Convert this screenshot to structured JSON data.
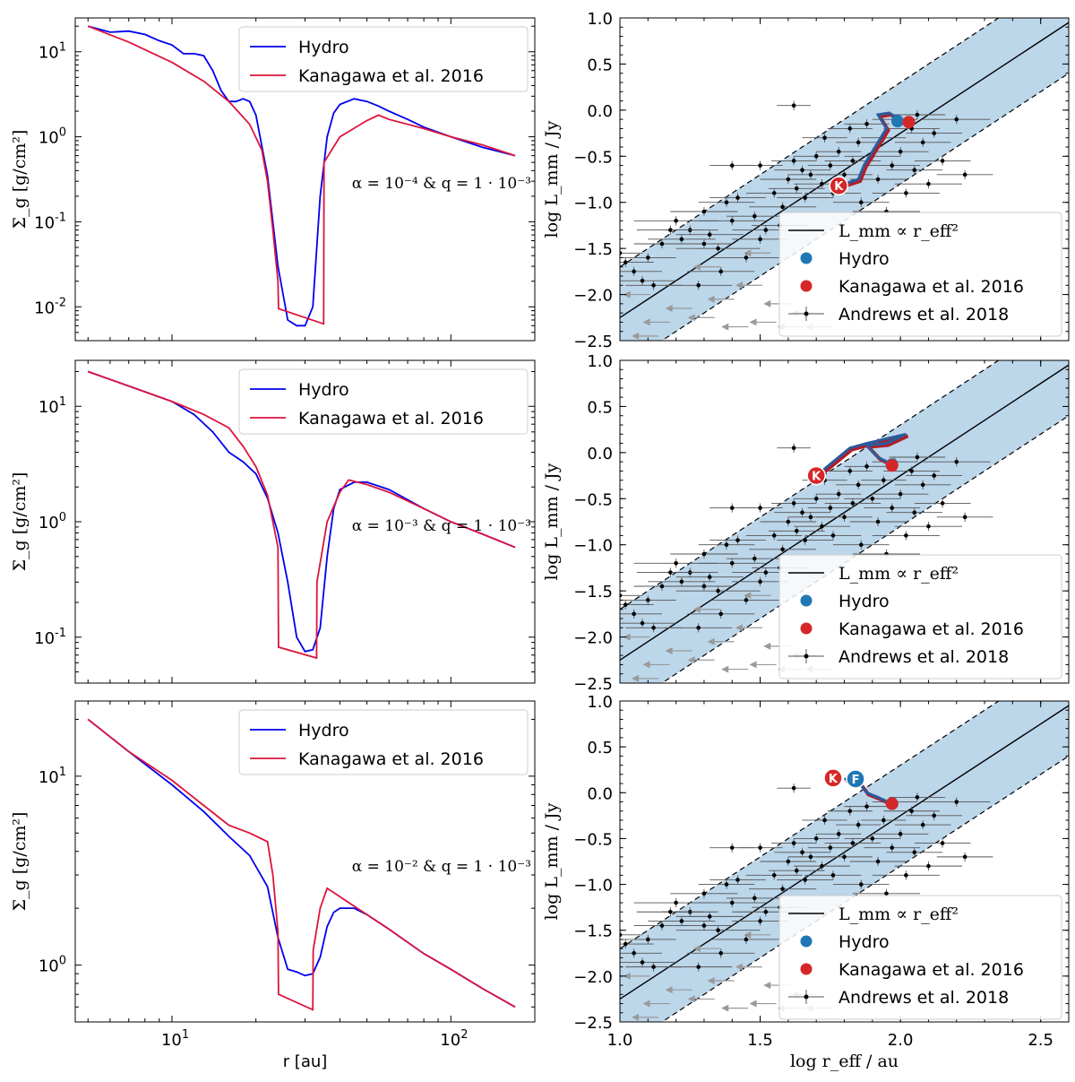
{
  "chart_data": [
    {
      "type": "line",
      "panel": "left-top",
      "scale": "log-log",
      "xlim": [
        4.5,
        200
      ],
      "ylim": [
        0.004,
        25
      ],
      "xlabel": "",
      "ylabel": "Σ_g [g/cm²]",
      "yticks": [
        {
          "v": 10,
          "label": "10",
          "exp": "1"
        },
        {
          "v": 1,
          "label": "10",
          "exp": "0"
        },
        {
          "v": 0.1,
          "label": "10",
          "exp": "-1"
        },
        {
          "v": 0.01,
          "label": "10",
          "exp": "-2"
        }
      ],
      "xticks": [],
      "annotation": "α = 10⁻⁴ & q = 1 · 10⁻³",
      "legend": {
        "position": "top-right",
        "entries": [
          {
            "label": "Hydro",
            "color": "#0000ee"
          },
          {
            "label": "Kanagawa et al. 2016",
            "color": "#dc143c"
          }
        ]
      },
      "series": [
        {
          "name": "Hydro",
          "color": "#0000ee",
          "x": [
            5,
            6,
            7,
            8,
            9,
            10,
            11,
            12,
            13,
            14,
            15,
            16,
            17,
            18,
            19,
            20,
            22,
            24,
            26,
            28,
            30,
            32,
            34,
            36,
            38,
            40,
            45,
            50,
            55,
            60,
            70,
            80,
            100,
            130,
            170
          ],
          "y": [
            20,
            17,
            17.5,
            16,
            13.5,
            12,
            9.5,
            9.5,
            9,
            6,
            3.5,
            2.6,
            2.6,
            2.8,
            2.6,
            1.8,
            0.35,
            0.03,
            0.007,
            0.006,
            0.006,
            0.01,
            0.2,
            1,
            1.9,
            2.4,
            2.8,
            2.6,
            2.3,
            2,
            1.6,
            1.3,
            1.0,
            0.75,
            0.6
          ]
        },
        {
          "name": "Kanagawa et al. 2016",
          "color": "#dc143c",
          "x": [
            5,
            7,
            10,
            13,
            16,
            19,
            21,
            22,
            23,
            24,
            24.1,
            35,
            35.1,
            40,
            50,
            55,
            60,
            80,
            100,
            130,
            170
          ],
          "y": [
            20,
            13,
            7.5,
            4.5,
            2.6,
            1.4,
            0.7,
            0.3,
            0.08,
            0.02,
            0.0095,
            0.0063,
            0.5,
            1.0,
            1.55,
            1.8,
            1.6,
            1.25,
            1.0,
            0.8,
            0.6
          ]
        }
      ]
    },
    {
      "type": "line",
      "panel": "left-middle",
      "scale": "log-log",
      "xlim": [
        4.5,
        200
      ],
      "ylim": [
        0.04,
        25
      ],
      "xlabel": "",
      "ylabel": "Σ_g [g/cm²]",
      "yticks": [
        {
          "v": 10,
          "label": "10",
          "exp": "1"
        },
        {
          "v": 1,
          "label": "10",
          "exp": "0"
        },
        {
          "v": 0.1,
          "label": "10",
          "exp": "-1"
        }
      ],
      "xticks": [],
      "annotation": "α = 10⁻³ & q = 1 · 10⁻³",
      "legend": {
        "position": "top-right",
        "entries": [
          {
            "label": "Hydro",
            "color": "#0000ee"
          },
          {
            "label": "Kanagawa et al. 2016",
            "color": "#dc143c"
          }
        ]
      },
      "series": [
        {
          "name": "Hydro",
          "color": "#0000ee",
          "x": [
            5,
            7,
            10,
            12,
            14,
            16,
            18,
            20,
            22,
            24,
            26,
            28,
            30,
            32,
            34,
            36,
            38,
            40,
            45,
            50,
            60,
            70,
            80,
            100,
            130,
            170
          ],
          "y": [
            20,
            15,
            11,
            8.5,
            6,
            4,
            3.3,
            2.6,
            1.6,
            0.8,
            0.3,
            0.1,
            0.075,
            0.078,
            0.12,
            0.5,
            1.3,
            1.9,
            2.2,
            2.2,
            1.9,
            1.55,
            1.3,
            1.0,
            0.78,
            0.6
          ]
        },
        {
          "name": "Kanagawa et al. 2016",
          "color": "#dc143c",
          "x": [
            5,
            7,
            10,
            13,
            16,
            18,
            20,
            22,
            24,
            24.1,
            33,
            33.1,
            36,
            40,
            43,
            50,
            60,
            80,
            100,
            130,
            170
          ],
          "y": [
            20,
            15,
            11,
            8.5,
            6.5,
            4.5,
            3,
            1.7,
            0.6,
            0.082,
            0.066,
            0.3,
            1.0,
            1.8,
            2.3,
            2.1,
            1.8,
            1.3,
            1.0,
            0.78,
            0.6
          ]
        }
      ]
    },
    {
      "type": "line",
      "panel": "left-bottom",
      "scale": "log-log",
      "xlim": [
        4.5,
        200
      ],
      "ylim": [
        0.5,
        25
      ],
      "xlabel": "r [au]",
      "ylabel": "Σ_g [g/cm²]",
      "yticks": [
        {
          "v": 10,
          "label": "10",
          "exp": "1"
        },
        {
          "v": 1,
          "label": "10",
          "exp": "0"
        }
      ],
      "xticks": [
        {
          "v": 10,
          "label": "10",
          "exp": "1"
        },
        {
          "v": 100,
          "label": "10",
          "exp": "2"
        }
      ],
      "annotation": "α = 10⁻² & q = 1 · 10⁻³",
      "legend": {
        "position": "top-right",
        "entries": [
          {
            "label": "Hydro",
            "color": "#0000ee"
          },
          {
            "label": "Kanagawa et al. 2016",
            "color": "#dc143c"
          }
        ]
      },
      "series": [
        {
          "name": "Hydro",
          "color": "#0000ee",
          "x": [
            5,
            7,
            10,
            13,
            16,
            19,
            22,
            24,
            26,
            28,
            30,
            32,
            34,
            36,
            38,
            40,
            45,
            50,
            60,
            80,
            100,
            130,
            170
          ],
          "y": [
            20,
            13.5,
            9,
            6.5,
            4.8,
            3.8,
            2.6,
            1.4,
            0.95,
            0.92,
            0.88,
            0.9,
            1.1,
            1.6,
            1.9,
            2.0,
            2.0,
            1.85,
            1.55,
            1.15,
            0.95,
            0.75,
            0.6
          ]
        },
        {
          "name": "Kanagawa et al. 2016",
          "color": "#dc143c",
          "x": [
            5,
            7,
            10,
            13,
            16,
            19,
            22,
            23,
            24,
            24.1,
            32,
            32.1,
            34,
            36,
            40,
            50,
            60,
            80,
            100,
            130,
            170
          ],
          "y": [
            20,
            13.5,
            9.5,
            7,
            5.5,
            5,
            4.5,
            3,
            1.5,
            0.7,
            0.58,
            1.2,
            2.0,
            2.55,
            2.3,
            1.85,
            1.55,
            1.15,
            0.95,
            0.75,
            0.6
          ]
        }
      ]
    },
    {
      "type": "scatter",
      "panel": "right-top",
      "xlim": [
        1.0,
        2.6
      ],
      "ylim": [
        -2.5,
        1.0
      ],
      "xlabel": "",
      "ylabel": "log L_mm / Jy",
      "yticks": [
        "1.0",
        "0.5",
        "0.0",
        "−0.5",
        "−1.0",
        "−1.5",
        "−2.0",
        "−2.5"
      ],
      "relation": {
        "label": "L_mm ∝ r_eff²",
        "slope": 2,
        "intercept": -4.25,
        "band_halfwidth": 0.55
      },
      "track": [
        [
          1.78,
          -0.82
        ],
        [
          1.85,
          -0.75
        ],
        [
          1.87,
          -0.6
        ],
        [
          1.9,
          -0.45
        ],
        [
          1.93,
          -0.3
        ],
        [
          1.95,
          -0.2
        ],
        [
          1.92,
          -0.05
        ],
        [
          1.96,
          -0.03
        ],
        [
          1.99,
          -0.1
        ],
        [
          2.01,
          -0.13
        ]
      ],
      "hydro_point": [
        1.99,
        -0.12
      ],
      "kanagawa_point": [
        2.03,
        -0.13
      ],
      "start_marker": {
        "label": "K",
        "x": 1.78,
        "y": -0.82
      },
      "legend": {
        "position": "lower-right",
        "entries": [
          {
            "label": "L_mm ∝ r_eff²",
            "kind": "line",
            "color": "#000000"
          },
          {
            "label": "Hydro",
            "kind": "dot",
            "color": "#1f77b4"
          },
          {
            "label": "Kanagawa et al. 2016",
            "kind": "dot",
            "color": "#d62728"
          },
          {
            "label": "Andrews et al. 2018",
            "kind": "errbar",
            "color": "#000000"
          }
        ]
      }
    },
    {
      "type": "scatter",
      "panel": "right-middle",
      "xlim": [
        1.0,
        2.6
      ],
      "ylim": [
        -2.5,
        1.0
      ],
      "xlabel": "",
      "ylabel": "log L_mm / Jy",
      "yticks": [
        "1.0",
        "0.5",
        "0.0",
        "−0.5",
        "−1.0",
        "−1.5",
        "−2.0",
        "−2.5"
      ],
      "relation": {
        "label": "L_mm ∝ r_eff²",
        "slope": 2,
        "intercept": -4.25,
        "band_halfwidth": 0.55
      },
      "track": [
        [
          1.7,
          -0.25
        ],
        [
          1.76,
          -0.1
        ],
        [
          1.82,
          0.05
        ],
        [
          1.88,
          0.1
        ],
        [
          1.95,
          0.15
        ],
        [
          2.02,
          0.2
        ],
        [
          1.95,
          0.1
        ],
        [
          1.88,
          0.08
        ],
        [
          1.92,
          -0.05
        ],
        [
          1.97,
          -0.13
        ]
      ],
      "hydro_point": [
        1.97,
        -0.13
      ],
      "kanagawa_point": [
        1.97,
        -0.14
      ],
      "start_marker": {
        "label": "K",
        "x": 1.7,
        "y": -0.25
      },
      "legend": {
        "position": "lower-right",
        "entries": [
          {
            "label": "L_mm ∝ r_eff²",
            "kind": "line",
            "color": "#000000"
          },
          {
            "label": "Hydro",
            "kind": "dot",
            "color": "#1f77b4"
          },
          {
            "label": "Kanagawa et al. 2016",
            "kind": "dot",
            "color": "#d62728"
          },
          {
            "label": "Andrews et al. 2018",
            "kind": "errbar",
            "color": "#000000"
          }
        ]
      }
    },
    {
      "type": "scatter",
      "panel": "right-bottom",
      "xlim": [
        1.0,
        2.6
      ],
      "ylim": [
        -2.5,
        1.0
      ],
      "xlabel": "log r_eff / au",
      "ylabel": "log L_mm / Jy",
      "xticks": [
        "1.0",
        "1.5",
        "2.0",
        "2.5"
      ],
      "yticks": [
        "1.0",
        "0.5",
        "0.0",
        "−0.5",
        "−1.0",
        "−1.5",
        "−2.0",
        "−2.5"
      ],
      "relation": {
        "label": "L_mm ∝ r_eff²",
        "slope": 2,
        "intercept": -4.25,
        "band_halfwidth": 0.55
      },
      "track": [
        [
          1.8,
          0.15
        ],
        [
          1.85,
          0.12
        ],
        [
          1.88,
          0.0
        ],
        [
          1.92,
          -0.05
        ],
        [
          1.97,
          -0.12
        ]
      ],
      "hydro_point": [
        1.97,
        -0.12
      ],
      "kanagawa_point": [
        1.97,
        -0.12
      ],
      "start_marker": {
        "label": "K",
        "x": 1.76,
        "y": 0.16
      },
      "start_marker_2": {
        "label": "F",
        "x": 1.84,
        "y": 0.15
      },
      "legend": {
        "position": "lower-right",
        "entries": [
          {
            "label": "L_mm ∝ r_eff²",
            "kind": "line",
            "color": "#000000"
          },
          {
            "label": "Hydro",
            "kind": "dot",
            "color": "#1f77b4"
          },
          {
            "label": "Kanagawa et al. 2016",
            "kind": "dot",
            "color": "#d62728"
          },
          {
            "label": "Andrews et al. 2018",
            "kind": "errbar",
            "color": "#000000"
          }
        ]
      }
    }
  ],
  "andrews_2018": {
    "name": "Andrews et al. 2018",
    "points": [
      [
        1.0,
        -1.55,
        0.08
      ],
      [
        1.02,
        -1.65,
        0.1
      ],
      [
        1.05,
        -1.75,
        0.1
      ],
      [
        1.08,
        -1.85,
        0.12
      ],
      [
        1.1,
        -1.6,
        0.1
      ],
      [
        1.15,
        -1.45,
        0.1
      ],
      [
        1.2,
        -1.2,
        0.15
      ],
      [
        1.22,
        -1.4,
        0.12
      ],
      [
        1.25,
        -1.3,
        0.1
      ],
      [
        1.3,
        -1.1,
        0.12
      ],
      [
        1.32,
        -1.35,
        0.12
      ],
      [
        1.35,
        -1.5,
        0.15
      ],
      [
        1.38,
        -1.0,
        0.1
      ],
      [
        1.4,
        -1.2,
        0.12
      ],
      [
        1.42,
        -0.95,
        0.1
      ],
      [
        1.45,
        -1.6,
        0.12
      ],
      [
        1.48,
        -1.15,
        0.1
      ],
      [
        1.5,
        -0.6,
        0.08
      ],
      [
        1.52,
        -1.3,
        0.12
      ],
      [
        1.55,
        -0.9,
        0.1
      ],
      [
        1.58,
        -1.05,
        0.12
      ],
      [
        1.6,
        -0.75,
        0.1
      ],
      [
        1.62,
        -0.55,
        0.08
      ],
      [
        1.63,
        -0.85,
        0.1
      ],
      [
        1.65,
        -0.65,
        0.1
      ],
      [
        1.66,
        -0.95,
        0.1
      ],
      [
        1.68,
        -0.7,
        0.08
      ],
      [
        1.7,
        -0.5,
        0.08
      ],
      [
        1.72,
        -0.8,
        0.1
      ],
      [
        1.73,
        -0.3,
        0.08
      ],
      [
        1.75,
        -0.6,
        0.08
      ],
      [
        1.76,
        -0.9,
        0.1
      ],
      [
        1.78,
        -0.45,
        0.08
      ],
      [
        1.8,
        -0.7,
        0.1
      ],
      [
        1.82,
        -0.2,
        0.08
      ],
      [
        1.83,
        -0.55,
        0.1
      ],
      [
        1.85,
        -0.35,
        0.08
      ],
      [
        1.86,
        -1.0,
        0.1
      ],
      [
        1.88,
        -0.15,
        0.08
      ],
      [
        1.9,
        -0.5,
        0.1
      ],
      [
        1.92,
        -0.75,
        0.1
      ],
      [
        1.94,
        -0.3,
        0.08
      ],
      [
        1.95,
        -1.1,
        0.12
      ],
      [
        1.97,
        -0.6,
        0.1
      ],
      [
        1.98,
        -0.1,
        0.08
      ],
      [
        2.0,
        -0.45,
        0.1
      ],
      [
        2.02,
        -0.9,
        0.12
      ],
      [
        2.04,
        -0.2,
        0.1
      ],
      [
        2.05,
        -0.65,
        0.1
      ],
      [
        2.06,
        -0.05,
        0.1
      ],
      [
        2.08,
        -0.35,
        0.1
      ],
      [
        2.1,
        -0.8,
        0.12
      ],
      [
        2.12,
        -0.25,
        0.1
      ],
      [
        2.15,
        -0.55,
        0.1
      ],
      [
        2.2,
        -0.1,
        0.12
      ],
      [
        2.23,
        -0.7,
        0.1
      ],
      [
        1.62,
        0.05,
        0.06
      ],
      [
        1.4,
        -0.6,
        0.08
      ],
      [
        1.3,
        -1.45,
        0.1
      ],
      [
        1.18,
        -1.3,
        0.12
      ],
      [
        1.12,
        -1.9,
        0.1
      ],
      [
        1.28,
        -1.9,
        0.12
      ],
      [
        1.36,
        -1.75,
        0.12
      ],
      [
        1.5,
        -1.4,
        0.1
      ],
      [
        1.57,
        -1.25,
        0.1
      ]
    ],
    "upper_limits": [
      [
        1.05,
        -2.0
      ],
      [
        1.12,
        -2.3
      ],
      [
        1.2,
        -2.15
      ],
      [
        1.28,
        -2.25
      ],
      [
        1.35,
        -2.05
      ],
      [
        1.4,
        -2.35
      ],
      [
        1.45,
        -1.9
      ],
      [
        1.5,
        -2.3
      ],
      [
        1.55,
        -2.1
      ],
      [
        1.6,
        -2.35
      ],
      [
        1.65,
        -2.2
      ],
      [
        1.7,
        -2.35
      ],
      [
        1.08,
        -2.45
      ],
      [
        1.3,
        -1.7
      ],
      [
        1.48,
        -1.55
      ]
    ]
  }
}
